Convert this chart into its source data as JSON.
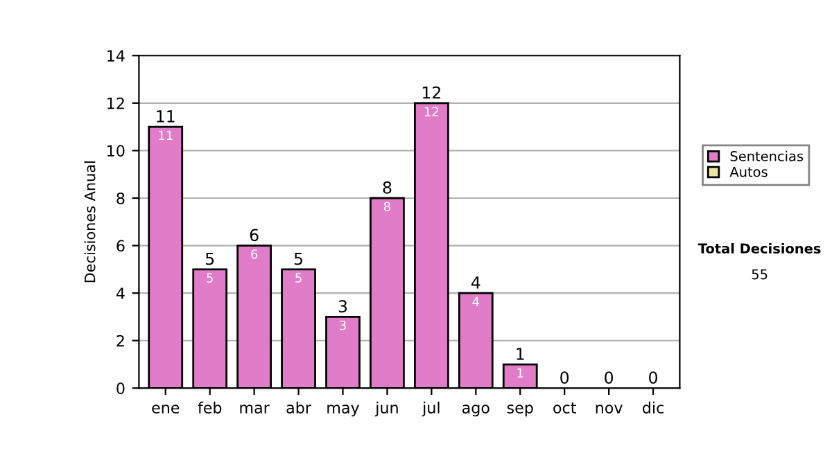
{
  "chart_data": {
    "type": "bar",
    "stacked": true,
    "ylabel": "Decisiones Anual",
    "categories": [
      "ene",
      "feb",
      "mar",
      "abr",
      "may",
      "jun",
      "jul",
      "ago",
      "sep",
      "oct",
      "nov",
      "dic"
    ],
    "series": [
      {
        "name": "Sentencias",
        "color": "#e07cc8",
        "values": [
          11,
          5,
          6,
          5,
          3,
          8,
          12,
          4,
          1,
          0,
          0,
          0
        ],
        "value_labels": [
          "11",
          "5",
          "6",
          "5",
          "3",
          "8",
          "12",
          "4",
          "1",
          null,
          null,
          null
        ]
      },
      {
        "name": "Autos",
        "color": "#e8e8a0",
        "values": [
          0,
          0,
          0,
          0,
          0,
          0,
          0,
          0,
          0,
          0,
          0,
          0
        ]
      }
    ],
    "totals": [
      "11",
      "5",
      "6",
      "5",
      "3",
      "8",
      "12",
      "4",
      "1",
      "0",
      "0",
      "0"
    ],
    "ylim": [
      0,
      14
    ],
    "yticks": [
      0,
      2,
      4,
      6,
      8,
      10,
      12,
      14
    ],
    "grid": "y",
    "legend": "right",
    "annotations": [
      "Total Decisiones",
      "55"
    ]
  }
}
